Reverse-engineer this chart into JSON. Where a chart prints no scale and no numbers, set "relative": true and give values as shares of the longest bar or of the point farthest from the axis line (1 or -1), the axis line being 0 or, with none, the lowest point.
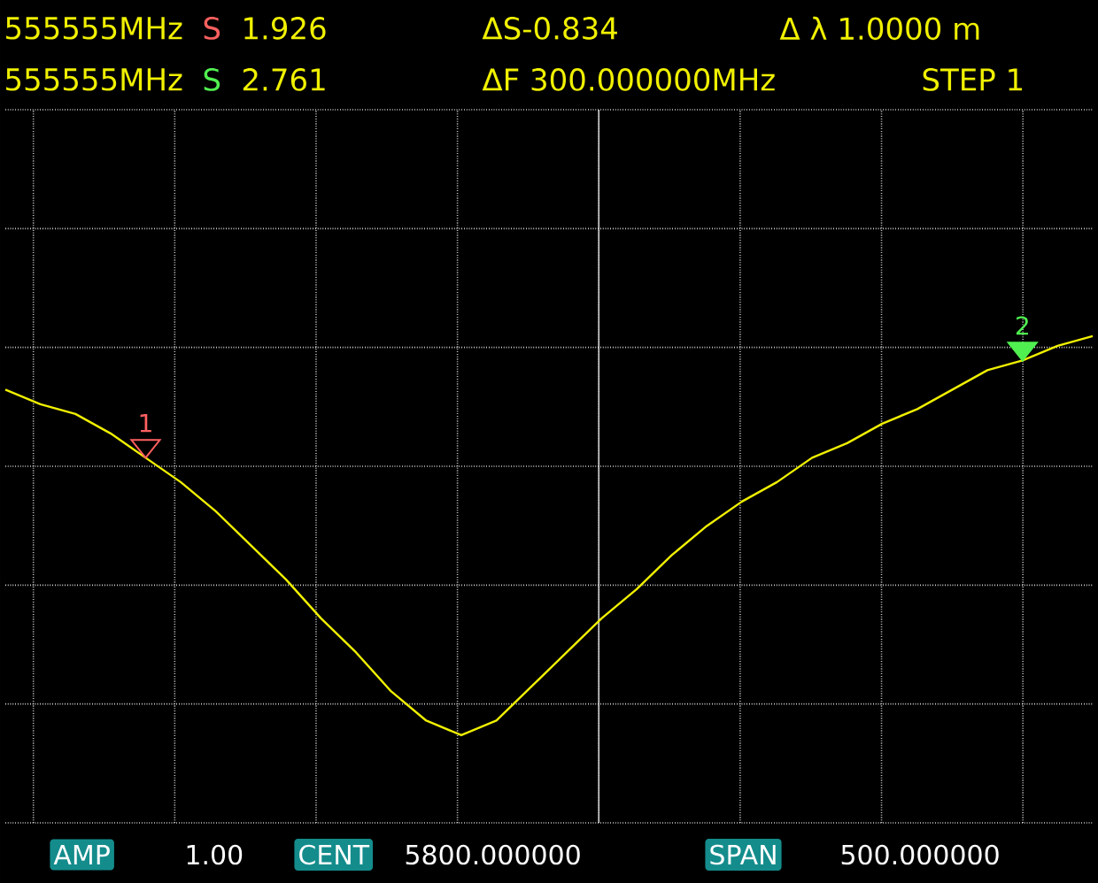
{
  "chart_data": {
    "type": "line",
    "relative": true,
    "grid": true,
    "color": "#f0f000",
    "line_style": "solid",
    "categories": [
      null,
      null,
      null,
      null,
      null,
      null,
      null,
      null,
      null,
      null,
      null,
      null,
      null,
      null,
      null,
      null,
      null,
      null,
      null,
      null,
      null,
      null,
      null,
      null,
      null,
      null,
      null,
      null,
      null,
      null,
      null,
      null
    ],
    "values": [
      0.89,
      0.86,
      0.84,
      0.8,
      0.75,
      0.7,
      0.64,
      0.57,
      0.5,
      0.42,
      0.35,
      0.27,
      0.21,
      0.18,
      0.21,
      0.28,
      0.35,
      0.42,
      0.48,
      0.55,
      0.61,
      0.66,
      0.7,
      0.75,
      0.78,
      0.82,
      0.85,
      0.89,
      0.93,
      0.95,
      0.98,
      1
    ],
    "annotations": [
      "555555MHz",
      "S",
      "1.926",
      "ΔS-0.834",
      "Δ λ 1.0000 m",
      "555555MHz",
      "S",
      "2.761",
      "ΔF 300.000000MHz",
      "STEP 1",
      "AMP",
      "1.00",
      "CENT",
      "5800.000000",
      "SPAN",
      "500.000000",
      {
        "text": "1",
        "y": 0.75
      },
      {
        "text": "2",
        "y": 0.95
      }
    ]
  }
}
